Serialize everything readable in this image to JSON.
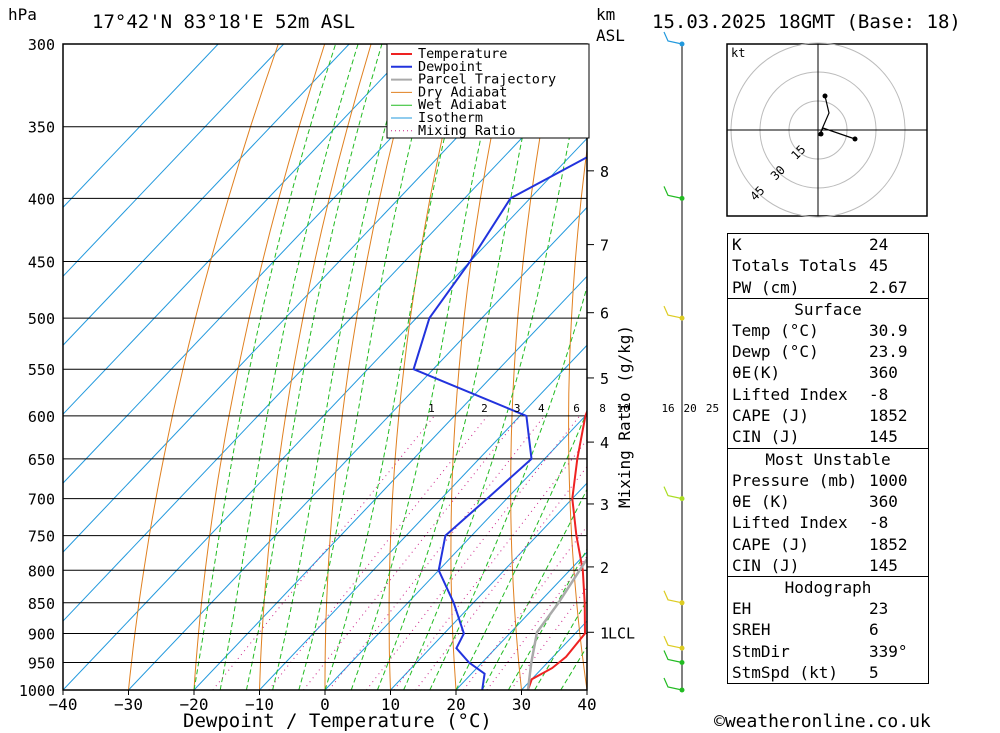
{
  "header": {
    "units_left": "hPa",
    "location": "17°42'N 83°18'E 52m ASL",
    "km_label": "km",
    "asl_label": "ASL",
    "datetime": "15.03.2025 18GMT (Base: 18)"
  },
  "footer": {
    "credit": "©weatheronline.co.uk"
  },
  "chart_data": {
    "type": "line",
    "title": "",
    "xlabel": "Dewpoint / Temperature (°C)",
    "ylabel": "hPa",
    "secondary_ylabel": "Mixing Ratio (g/kg)",
    "x_ticks": [
      "−40",
      "−30",
      "−20",
      "−10",
      "0",
      "10",
      "20",
      "30",
      "40"
    ],
    "pressure_levels": [
      300,
      350,
      400,
      450,
      500,
      550,
      600,
      650,
      700,
      750,
      800,
      850,
      900,
      950,
      1000
    ],
    "km_ticks": [
      {
        "label": "8",
        "p": 380
      },
      {
        "label": "7",
        "p": 436
      },
      {
        "label": "6",
        "p": 495
      },
      {
        "label": "5",
        "p": 559
      },
      {
        "label": "4",
        "p": 630
      },
      {
        "label": "3",
        "p": 707
      },
      {
        "label": "2",
        "p": 795
      },
      {
        "label": "1",
        "p": 898
      }
    ],
    "lcl_label": "LCL",
    "lcl_pressure": 898,
    "mixing_ratio_labels": [
      "1",
      "2",
      "3",
      "4",
      "6",
      "8",
      "10",
      "16",
      "20",
      "25"
    ],
    "legend": [
      "Temperature",
      "Dewpoint",
      "Parcel Trajectory",
      "Dry Adiabat",
      "Wet Adiabat",
      "Isotherm",
      "Mixing Ratio"
    ],
    "legend_position": "top-right",
    "series": [
      {
        "name": "Temperature",
        "color": "#ee2222",
        "points": [
          [
            1000,
            31
          ],
          [
            980,
            30
          ],
          [
            960,
            31.5
          ],
          [
            940,
            32
          ],
          [
            900,
            31.5
          ],
          [
            850,
            27
          ],
          [
            800,
            22
          ],
          [
            750,
            16
          ],
          [
            700,
            10
          ],
          [
            650,
            5
          ],
          [
            600,
            0
          ],
          [
            550,
            -4
          ],
          [
            500,
            -10
          ],
          [
            450,
            -15
          ],
          [
            400,
            -21
          ],
          [
            370,
            -26
          ],
          [
            350,
            -31
          ],
          [
            300,
            -40
          ]
        ]
      },
      {
        "name": "Dewpoint",
        "color": "#2233dd",
        "points": [
          [
            1000,
            24
          ],
          [
            970,
            22
          ],
          [
            950,
            18
          ],
          [
            925,
            14
          ],
          [
            900,
            13
          ],
          [
            850,
            7
          ],
          [
            800,
            0
          ],
          [
            750,
            -4
          ],
          [
            700,
            -3
          ],
          [
            650,
            -2
          ],
          [
            600,
            -9
          ],
          [
            550,
            -33
          ],
          [
            500,
            -38
          ],
          [
            450,
            -40
          ],
          [
            400,
            -43
          ],
          [
            350,
            -33
          ],
          [
            300,
            -41
          ]
        ]
      },
      {
        "name": "Parcel Trajectory",
        "color": "#aaaaaa",
        "points": [
          [
            1000,
            31
          ],
          [
            950,
            27.5
          ],
          [
            898,
            24
          ],
          [
            850,
            23
          ],
          [
            800,
            21.5
          ],
          [
            750,
            20
          ],
          [
            700,
            18
          ],
          [
            650,
            15.5
          ],
          [
            600,
            12.5
          ],
          [
            550,
            8.5
          ],
          [
            500,
            4
          ],
          [
            450,
            -1
          ],
          [
            400,
            -7
          ],
          [
            360,
            -13
          ]
        ]
      }
    ],
    "x_range": [
      -40,
      40
    ],
    "p_range": [
      300,
      1000
    ],
    "grid": true
  },
  "hodograph": {
    "unit_label": "kt",
    "ring_labels": [
      "15",
      "30",
      "45"
    ]
  },
  "indices": {
    "top": [
      {
        "label": "K",
        "value": "24"
      },
      {
        "label": "Totals Totals",
        "value": "45"
      },
      {
        "label": "PW (cm)",
        "value": "2.67"
      }
    ],
    "surface_title": "Surface",
    "surface": [
      {
        "label": "Temp (°C)",
        "value": "30.9"
      },
      {
        "label": "Dewp (°C)",
        "value": "23.9"
      },
      {
        "label": "θE(K)",
        "value": "360"
      },
      {
        "label": "Lifted Index",
        "value": "-8"
      },
      {
        "label": "CAPE (J)",
        "value": "1852"
      },
      {
        "label": "CIN (J)",
        "value": "145"
      }
    ],
    "mu_title": "Most Unstable",
    "mu": [
      {
        "label": "Pressure (mb)",
        "value": "1000"
      },
      {
        "label": "θE (K)",
        "value": "360"
      },
      {
        "label": "Lifted Index",
        "value": "-8"
      },
      {
        "label": "CAPE (J)",
        "value": "1852"
      },
      {
        "label": "CIN (J)",
        "value": "145"
      }
    ],
    "hodo_title": "Hodograph",
    "hodo": [
      {
        "label": "EH",
        "value": "23"
      },
      {
        "label": "SREH",
        "value": "6"
      },
      {
        "label": "StmDir",
        "value": "339°"
      },
      {
        "label": "StmSpd (kt)",
        "value": "5"
      }
    ]
  },
  "colors": {
    "temperature": "#ee2222",
    "dewpoint": "#2233dd",
    "parcel": "#aaaaaa",
    "dry_adiabat": "#e08020",
    "wet_adiabat": "#22bb22",
    "isotherm": "#2299dd",
    "mixing_ratio": "#cc2288"
  }
}
